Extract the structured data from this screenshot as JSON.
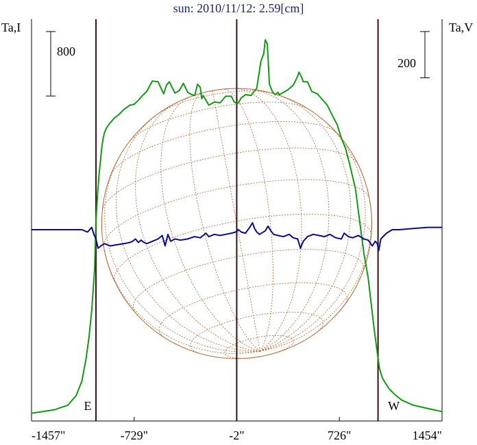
{
  "chart_data": {
    "type": "line",
    "title": "sun: 2010/11/12: 2.59[cm]",
    "ylabel_left": "Ta,I",
    "ylabel_right": "Ta,V",
    "x_ticks": [
      -1457,
      -729,
      -2,
      726,
      1454
    ],
    "x_tick_labels": [
      "-1457\"",
      "-729\"",
      "-2\"",
      "726\"",
      "1454\""
    ],
    "xlim": [
      -1457,
      1454
    ],
    "limb_markers": [
      {
        "label": "E",
        "x": -1000
      },
      {
        "label": "W",
        "x": 1000
      }
    ],
    "center_marker_x": -2,
    "scale_bars": [
      {
        "axis": "left",
        "label": "800",
        "value": 800
      },
      {
        "axis": "right",
        "label": "200",
        "value": 200
      }
    ],
    "intensity_ylim": [
      0,
      4600
    ],
    "polarization_ylim": [
      -1300,
      300
    ],
    "series": [
      {
        "axis": "left",
        "color": "#109a10",
        "x": [
          -1457,
          -1300,
          -1200,
          -1140,
          -1100,
          -1070,
          -1050,
          -1030,
          -1010,
          -1000,
          -990,
          -980,
          -970,
          -960,
          -950,
          -940,
          -925,
          -900,
          -870,
          -840,
          -800,
          -760,
          -730,
          -700,
          -670,
          -640,
          -600,
          -560,
          -520,
          -500,
          -480,
          -440,
          -410,
          -380,
          -350,
          -320,
          -300,
          -280,
          -260,
          -250,
          -240,
          -200,
          -160,
          -120,
          -80,
          -40,
          -20,
          0,
          10,
          30,
          60,
          100,
          140,
          170,
          190,
          200,
          215,
          230,
          250,
          270,
          290,
          300,
          320,
          360,
          400,
          430,
          440,
          460,
          470,
          500,
          530,
          570,
          600,
          640,
          680,
          710,
          740,
          770,
          800,
          840,
          870,
          900,
          930,
          950,
          970,
          985,
          1000,
          1010,
          1020,
          1030,
          1050,
          1080,
          1120,
          1170,
          1250,
          1350,
          1454
        ],
        "y": [
          20,
          60,
          120,
          240,
          420,
          700,
          950,
          1300,
          1800,
          2400,
          2700,
          2950,
          3120,
          3300,
          3420,
          3500,
          3560,
          3620,
          3680,
          3720,
          3790,
          3840,
          3850,
          3900,
          3960,
          4010,
          4140,
          4130,
          3980,
          4090,
          4130,
          3990,
          4020,
          4110,
          4000,
          3970,
          3960,
          4100,
          4060,
          3920,
          3960,
          3840,
          3880,
          3870,
          3950,
          3950,
          3880,
          3860,
          3870,
          3930,
          3970,
          3960,
          4050,
          4390,
          4480,
          4650,
          4600,
          4100,
          4010,
          3970,
          4000,
          3970,
          3990,
          4030,
          4090,
          4200,
          4250,
          4180,
          4130,
          4130,
          4010,
          3980,
          3920,
          3840,
          3700,
          3600,
          3430,
          3300,
          3100,
          2800,
          2400,
          2000,
          1700,
          1400,
          1100,
          900,
          700,
          580,
          520,
          460,
          400,
          320,
          250,
          180,
          120,
          80,
          40
        ]
      },
      {
        "axis": "right",
        "color": "#0a0a8c",
        "x": [
          -1457,
          -1200,
          -1100,
          -1060,
          -1030,
          -1015,
          -1000,
          -985,
          -965,
          -940,
          -900,
          -850,
          -800,
          -760,
          -740,
          -720,
          -700,
          -680,
          -660,
          -640,
          -600,
          -560,
          -530,
          -510,
          -490,
          -470,
          -440,
          -400,
          -350,
          -300,
          -260,
          -240,
          -220,
          -200,
          -160,
          -120,
          -80,
          -40,
          -10,
          10,
          30,
          60,
          90,
          110,
          125,
          140,
          160,
          200,
          220,
          240,
          260,
          290,
          330,
          370,
          400,
          430,
          450,
          470,
          500,
          540,
          580,
          620,
          660,
          700,
          740,
          760,
          790,
          820,
          860,
          900,
          930,
          960,
          980,
          995,
          1005,
          1020,
          1060,
          1100,
          1150,
          1250,
          1350,
          1454
        ],
        "y": [
          0,
          0,
          0,
          -10,
          10,
          -20,
          -40,
          -80,
          -70,
          -60,
          -70,
          -65,
          -60,
          -55,
          -50,
          -40,
          -55,
          -45,
          -55,
          -60,
          -50,
          -40,
          -25,
          -70,
          -20,
          -50,
          -40,
          -45,
          -40,
          -30,
          -35,
          -25,
          -15,
          -30,
          -20,
          -25,
          -20,
          -15,
          -10,
          0,
          -10,
          -15,
          10,
          30,
          5,
          -10,
          -20,
          -5,
          15,
          -5,
          -20,
          -25,
          -30,
          -20,
          -35,
          -40,
          -80,
          -50,
          -30,
          -20,
          -25,
          -30,
          -20,
          -35,
          -40,
          -15,
          -30,
          -35,
          -25,
          -40,
          -45,
          -70,
          -50,
          -60,
          -90,
          -40,
          -15,
          0,
          0,
          5,
          10,
          10
        ]
      }
    ]
  }
}
